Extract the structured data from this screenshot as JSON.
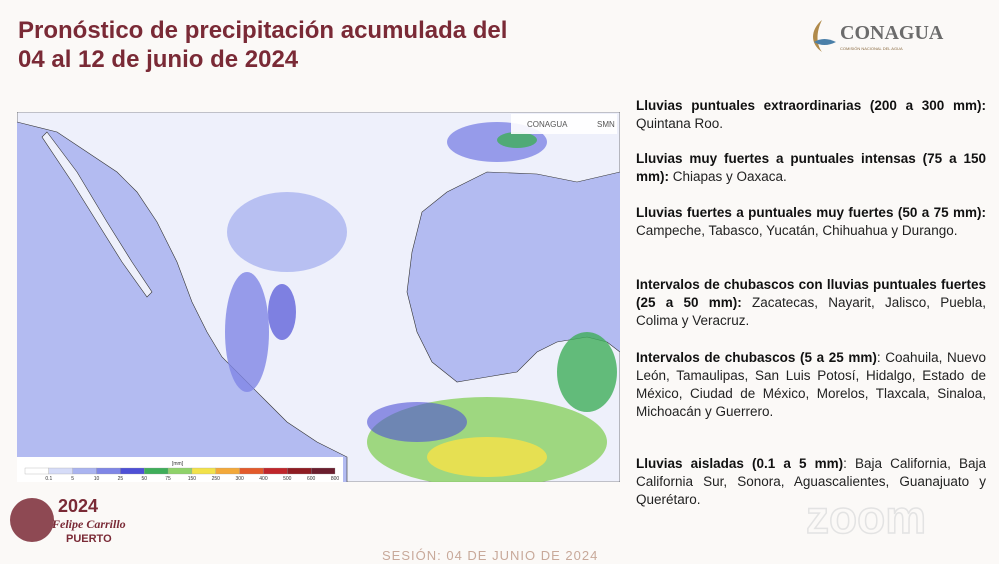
{
  "header": {
    "title_line1": "Pronóstico de precipitación acumulada del",
    "title_line2": "04 al 12 de junio de 2024",
    "logo": "CONAGUA",
    "logo_subtitle": "COMISIÓN NACIONAL DEL AGUA"
  },
  "map": {
    "logo_left": "CONAGUA",
    "logo_right": "SMN",
    "legend": {
      "unit": "[mm]",
      "labels": [
        "0.1",
        "5",
        "10",
        "25",
        "50",
        "75",
        "150",
        "250",
        "300",
        "400",
        "500",
        "600",
        "800"
      ],
      "colors": [
        "#ffffff",
        "#d6dcf8",
        "#aab4f0",
        "#7f86e6",
        "#4e50d6",
        "#3fae5a",
        "#8fd26a",
        "#f2e24a",
        "#f3a93a",
        "#e35a2b",
        "#c0262b",
        "#8e1c22",
        "#6a1e2e"
      ]
    }
  },
  "forecast": {
    "items": [
      {
        "bold": "Lluvias puntuales extraordinarias (200 a 300 mm):",
        "text": " Quintana Roo."
      },
      {
        "bold": "Lluvias muy fuertes a puntuales intensas (75 a 150 mm):",
        "text": " Chiapas y Oaxaca."
      },
      {
        "bold": "Lluvias fuertes a puntuales muy fuertes (50 a 75 mm):",
        "text": " Campeche, Tabasco, Yucatán, Chihuahua y Durango."
      },
      {
        "bold": "Intervalos de chubascos con lluvias puntuales fuertes (25 a 50 mm):",
        "text": " Zacatecas, Nayarit, Jalisco, Puebla, Colima y Veracruz."
      },
      {
        "bold": "Intervalos de chubascos (5 a 25 mm)",
        "text": ": Coahuila, Nuevo León, Tamaulipas, San Luis Potosí, Hidalgo, Estado de México, Ciudad de México, Morelos, Tlaxcala, Sinaloa, Michoacán y Guerrero."
      },
      {
        "bold": "Lluvias aisladas (0.1 a 5 mm)",
        "text": ": Baja California, Baja California Sur, Sonora, Aguascalientes, Guanajuato y Querétaro."
      }
    ]
  },
  "footer": {
    "year": "2024",
    "name": "Felipe Carrillo",
    "place": "PUERTO",
    "session": "SESIÓN: 04 DE JUNIO DE 2024",
    "watermark": "zoom"
  }
}
